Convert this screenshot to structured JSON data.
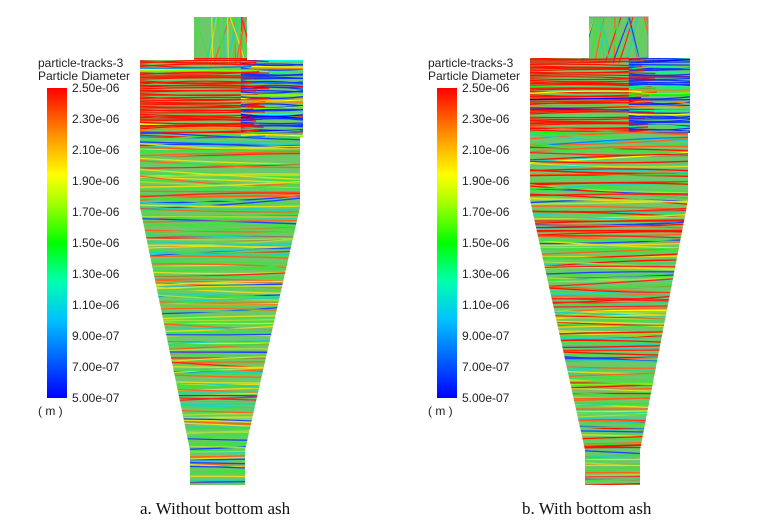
{
  "panels": [
    {
      "id": "a",
      "legend_title_1": "particle-tracks-3",
      "legend_title_2": "Particle Diameter",
      "unit": "( m )",
      "caption": "a. Without bottom ash"
    },
    {
      "id": "b",
      "legend_title_1": "particle-tracks-3",
      "legend_title_2": "Particle Diameter",
      "unit": "( m )",
      "caption": "b. With bottom ash"
    }
  ],
  "colorbar": {
    "ticks": [
      "2.50e-06",
      "2.30e-06",
      "2.10e-06",
      "1.90e-06",
      "1.70e-06",
      "1.50e-06",
      "1.30e-06",
      "1.10e-06",
      "9.00e-07",
      "7.00e-07",
      "5.00e-07"
    ],
    "range": [
      5e-07,
      2.5e-06
    ],
    "colors": [
      "#0000ff",
      "#0080ff",
      "#00ffff",
      "#00ff80",
      "#00ff00",
      "#80ff00",
      "#ffff00",
      "#ff8000",
      "#ff0000"
    ]
  }
}
